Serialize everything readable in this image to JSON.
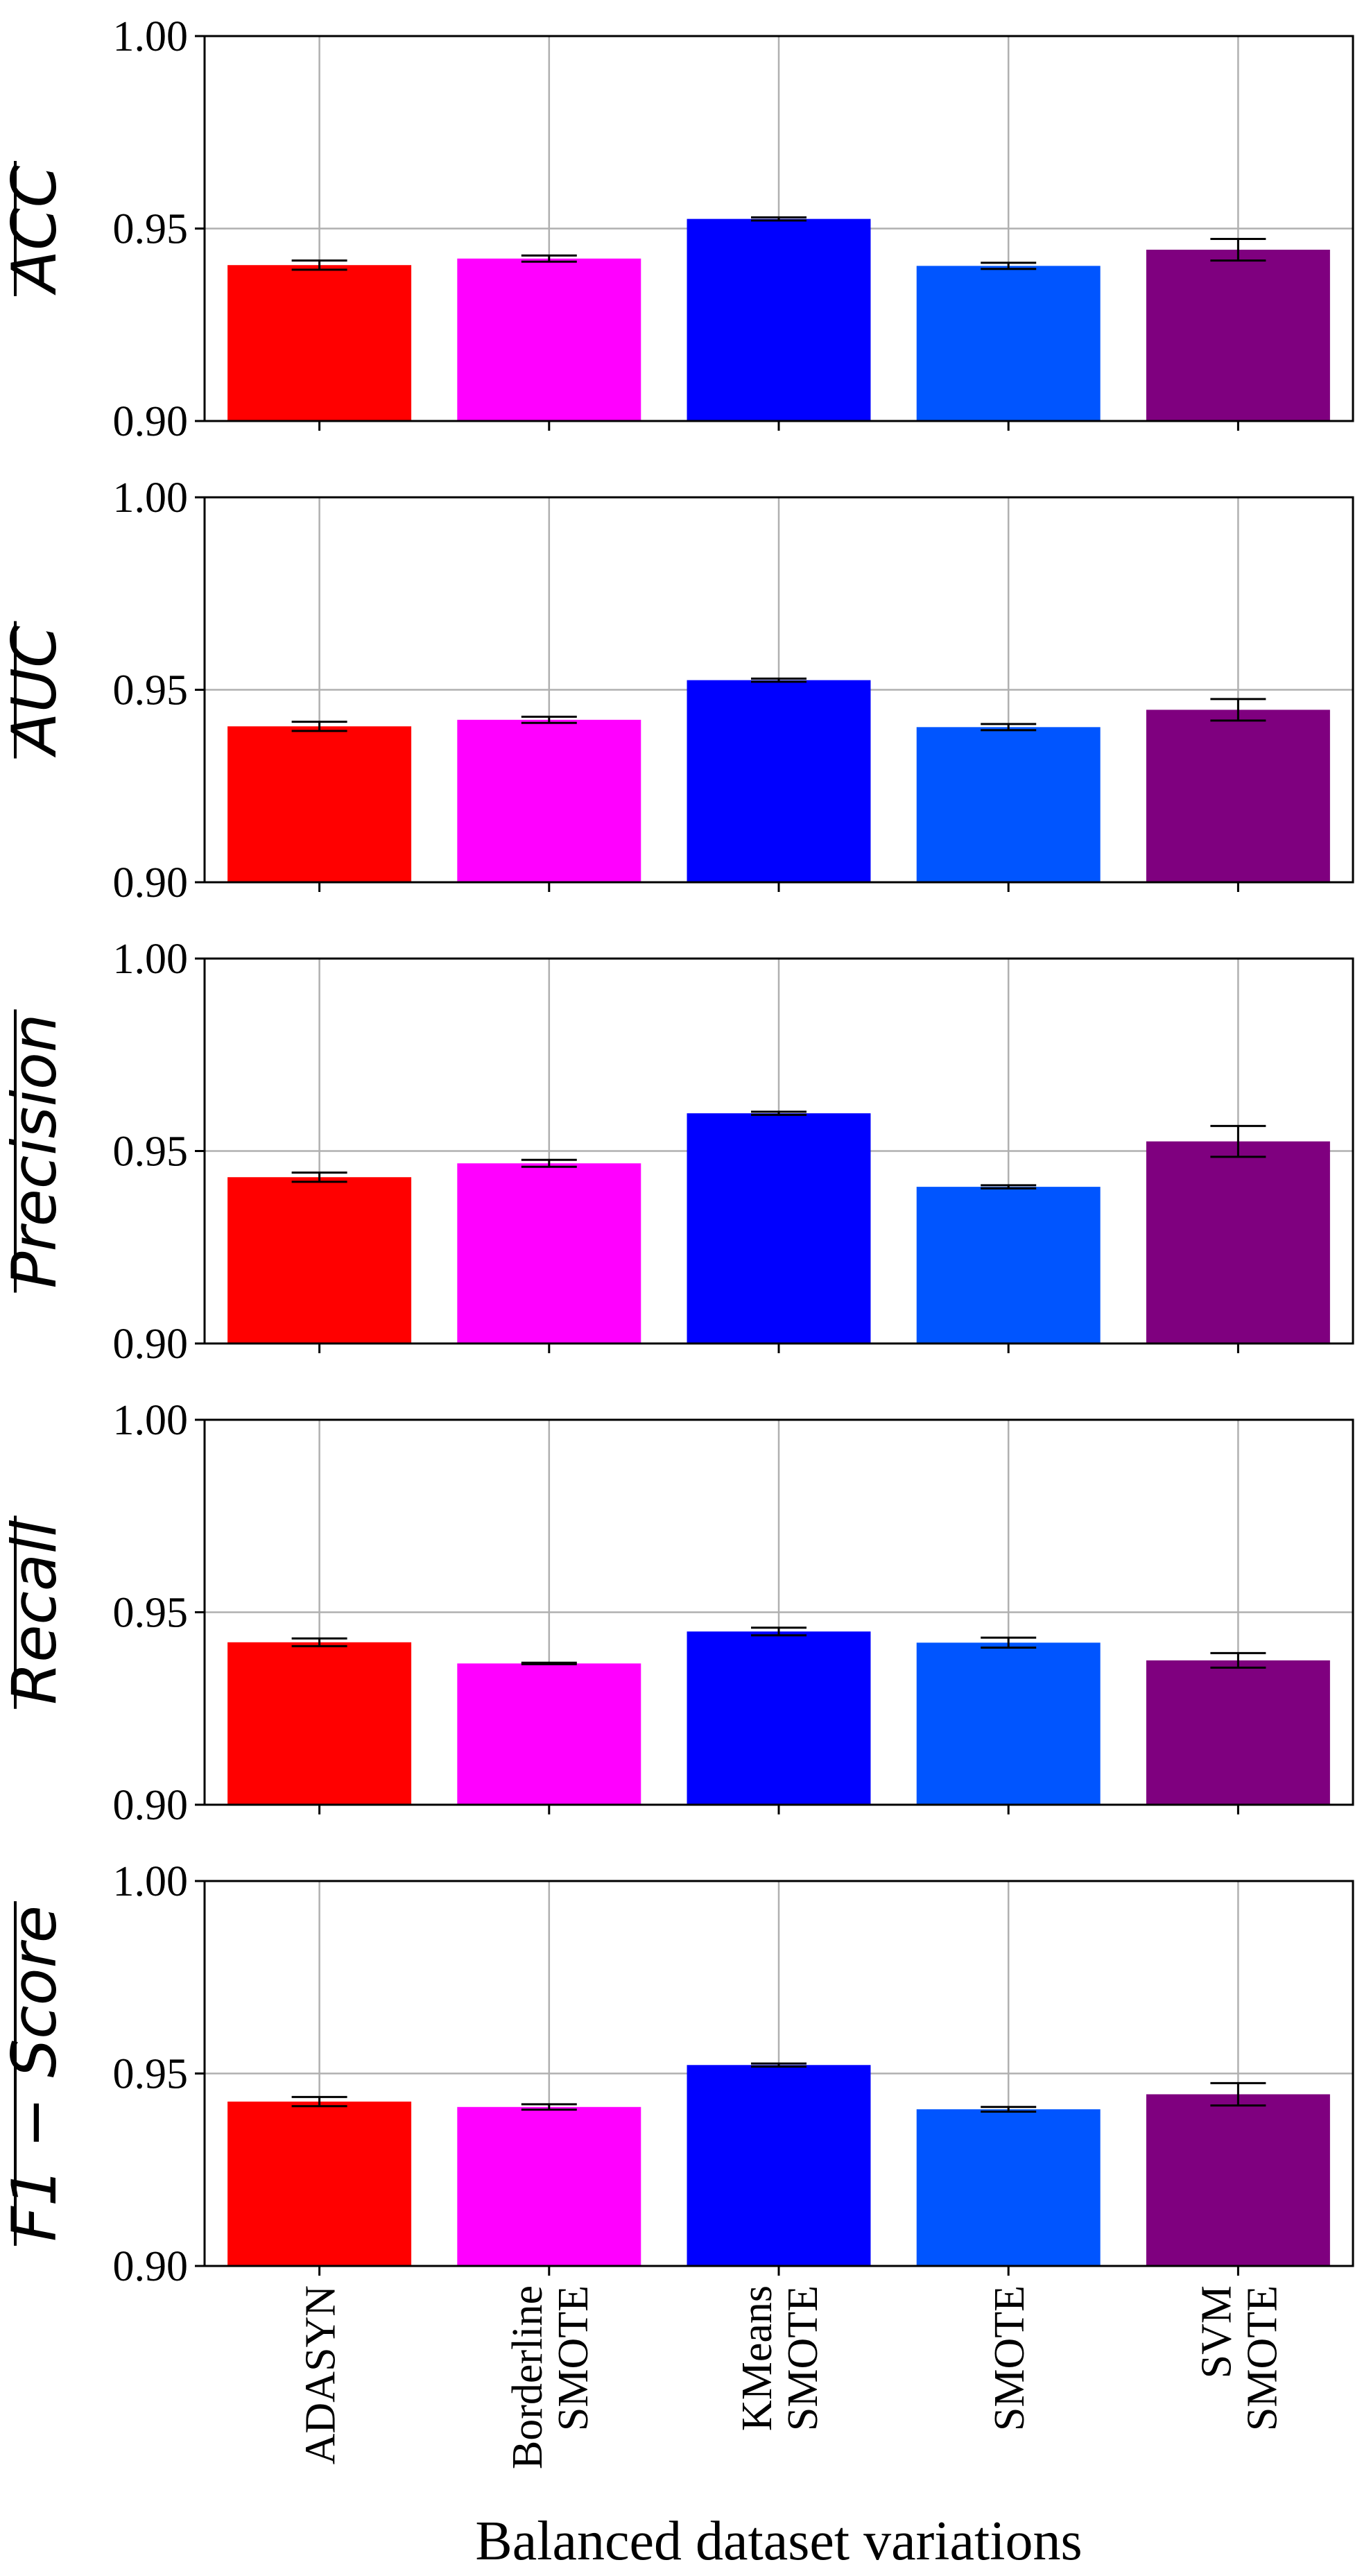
{
  "chart_data": {
    "type": "bar",
    "xlabel": "Balanced dataset variations",
    "categories": [
      [
        "ADASYN"
      ],
      [
        "Borderline",
        "SMOTE"
      ],
      [
        "KMeans",
        "SMOTE"
      ],
      [
        "SMOTE"
      ],
      [
        "SVM",
        "SMOTE"
      ]
    ],
    "colors": [
      "#ff0000",
      "#ff00ff",
      "#0000ff",
      "#0055ff",
      "#7f007f"
    ],
    "ylim": [
      0.9,
      1.0
    ],
    "yticks": [
      "0.90",
      "0.95",
      "1.00"
    ],
    "grid": true,
    "panels": [
      {
        "ylabel": "ACC",
        "values": [
          0.9405,
          0.9422,
          0.9525,
          0.9403,
          0.9445
        ],
        "errors": [
          0.0012,
          0.0008,
          0.0004,
          0.0008,
          0.0028
        ]
      },
      {
        "ylabel": "AUC",
        "values": [
          0.9405,
          0.9422,
          0.9525,
          0.9403,
          0.9448
        ],
        "errors": [
          0.0012,
          0.0008,
          0.0004,
          0.0008,
          0.0028
        ]
      },
      {
        "ylabel": "Precision",
        "values": [
          0.9432,
          0.9468,
          0.9598,
          0.9407,
          0.9525
        ],
        "errors": [
          0.0012,
          0.0009,
          0.0004,
          0.0004,
          0.004
        ]
      },
      {
        "ylabel": "Recall",
        "values": [
          0.9422,
          0.9367,
          0.945,
          0.9421,
          0.9375
        ],
        "errors": [
          0.001,
          0.0002,
          0.001,
          0.0013,
          0.0019
        ]
      },
      {
        "ylabel": "F1 − Score",
        "values": [
          0.9427,
          0.9413,
          0.9522,
          0.9407,
          0.9446
        ],
        "errors": [
          0.0012,
          0.0007,
          0.0004,
          0.0006,
          0.0029
        ]
      }
    ]
  }
}
